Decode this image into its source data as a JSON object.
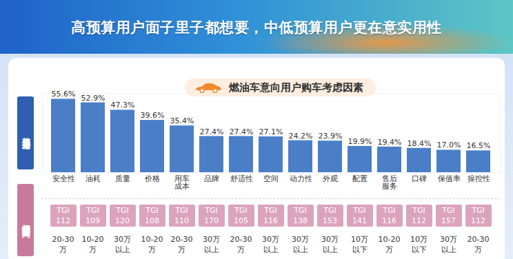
{
  "chart_data": {
    "type": "bar",
    "title": "高预算用户面子里子都想要，中低预算用户更在意实用性",
    "subtitle": "燃油车意向用户购车考虑因素",
    "y_label": "整体用户偏好",
    "categories": [
      "安全性",
      "油耗",
      "质量",
      "价格",
      "用车成本",
      "品牌",
      "舒适性",
      "空间",
      "动力性",
      "外观",
      "配置",
      "售后服务",
      "口碑",
      "保值率",
      "操控性"
    ],
    "values": [
      55.6,
      52.9,
      47.3,
      39.6,
      35.4,
      27.4,
      27.4,
      27.1,
      24.2,
      23.9,
      19.9,
      19.4,
      18.4,
      17.0,
      16.5
    ],
    "value_labels": [
      "55.6%",
      "52.9%",
      "47.3%",
      "39.6%",
      "35.4%",
      "27.4%",
      "27.4%",
      "27.1%",
      "24.2%",
      "23.9%",
      "19.9%",
      "19.4%",
      "18.4%",
      "17.0%",
      "16.5%"
    ],
    "color": "#4a7fc8",
    "ylim": [
      0,
      60
    ],
    "tick_labels": "x",
    "data_labels": true,
    "tgi": {
      "label": "TGI",
      "values": [
        112,
        109,
        120,
        108,
        110,
        170,
        105,
        116,
        138,
        153,
        141,
        116,
        112,
        157,
        112
      ]
    },
    "budget": {
      "label": "偏好显著预算区间",
      "values": [
        "20-30万",
        "10-20万",
        "30万以上",
        "10-20万",
        "20-30万",
        "30万以上",
        "20-30万",
        "30万以上",
        "30万以上",
        "30万以上",
        "10万以下",
        "10-20万",
        "10万以下",
        "30万以上",
        "20-30万"
      ]
    }
  }
}
